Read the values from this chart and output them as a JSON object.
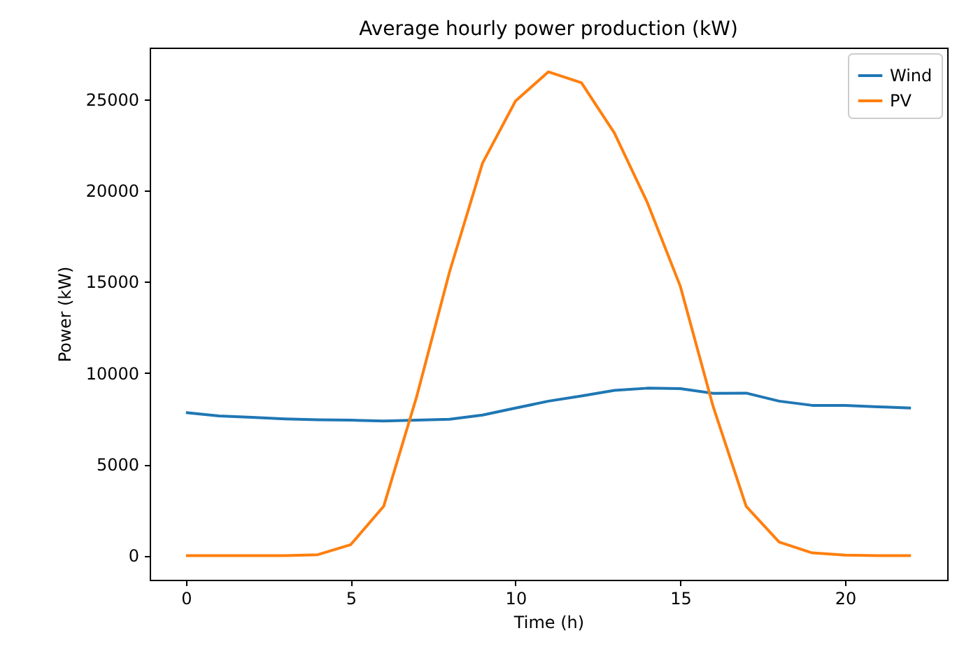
{
  "chart_data": {
    "type": "line",
    "title": "Average hourly power production (kW)",
    "xlabel": "Time (h)",
    "ylabel": "Power (kW)",
    "x": [
      0,
      1,
      2,
      3,
      4,
      5,
      6,
      7,
      8,
      9,
      10,
      11,
      12,
      13,
      14,
      15,
      16,
      17,
      18,
      19,
      20,
      21,
      22
    ],
    "series": [
      {
        "name": "Wind",
        "color": "#1f77b4",
        "values": [
          7830,
          7650,
          7570,
          7490,
          7440,
          7420,
          7370,
          7420,
          7470,
          7700,
          8080,
          8460,
          8740,
          9050,
          9170,
          9150,
          8890,
          8900,
          8460,
          8230,
          8230,
          8150,
          8080
        ]
      },
      {
        "name": "PV",
        "color": "#ff7f0e",
        "values": [
          0,
          0,
          0,
          0,
          50,
          600,
          2700,
          8700,
          15550,
          21500,
          24900,
          26500,
          25900,
          23150,
          19340,
          14760,
          8150,
          2700,
          740,
          150,
          30,
          0,
          0
        ]
      }
    ],
    "xlim": [
      -1.1,
      23.1
    ],
    "xticks": [
      0,
      5,
      10,
      15,
      20
    ],
    "ylim": [
      -1325,
      27825
    ],
    "yticks": [
      0,
      5000,
      10000,
      15000,
      20000,
      25000
    ],
    "grid": false,
    "legend": "top right",
    "marker": "none",
    "line_style": "solid"
  }
}
